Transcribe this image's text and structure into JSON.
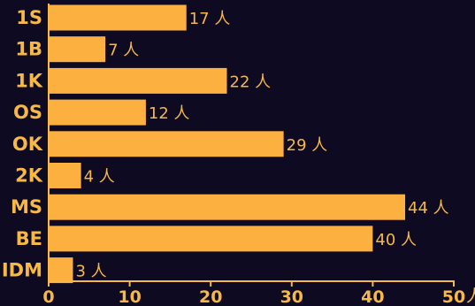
{
  "chart_data": {
    "type": "bar",
    "orientation": "horizontal",
    "categories": [
      "1S",
      "1B",
      "1K",
      "OS",
      "OK",
      "2K",
      "MS",
      "BE",
      "IDM"
    ],
    "values": [
      17,
      7,
      22,
      12,
      29,
      4,
      44,
      40,
      3
    ],
    "value_labels": [
      "17 人",
      "7 人",
      "22 人",
      "12 人",
      "29 人",
      "4 人",
      "44 人",
      "40 人",
      "3 人"
    ],
    "xlim": [
      0,
      50
    ],
    "xticks": [
      0,
      10,
      20,
      30,
      40,
      50
    ],
    "x_unit": "人",
    "grid": false,
    "colors": {
      "bar": "#fbb040",
      "text": "#f7b845",
      "axis": "#f7b845",
      "background": "#0d0a22"
    }
  }
}
